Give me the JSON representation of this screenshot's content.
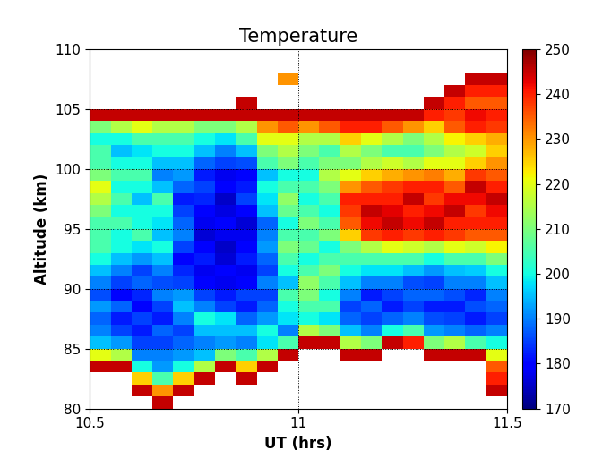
{
  "chart_data": {
    "type": "heatmap",
    "title": "Temperature",
    "x_label": "UT (hrs)",
    "y_label": "Altitude (km)",
    "xlim": [
      10.5,
      11.5
    ],
    "xticks": [
      10.5,
      11,
      11.5
    ],
    "ylim": [
      80,
      110
    ],
    "yticks": [
      80,
      85,
      90,
      95,
      100,
      105,
      110
    ],
    "grid": true,
    "color": "jet",
    "x_edges": [
      10.5,
      10.55,
      10.6,
      10.65,
      10.7,
      10.75,
      10.8,
      10.85,
      10.9,
      10.95,
      11.0,
      11.05,
      11.1,
      11.15,
      11.2,
      11.25,
      11.3,
      11.35,
      11.4,
      11.45,
      11.5
    ],
    "y_edges": [
      80,
      81,
      82,
      83,
      84,
      85,
      86,
      87,
      88,
      89,
      90,
      91,
      92,
      93,
      94,
      95,
      96,
      97,
      98,
      99,
      100,
      101,
      102,
      103,
      104,
      105,
      106,
      107,
      108,
      109,
      110
    ],
    "cells_by_column": [
      [
        null,
        null,
        null,
        245,
        220,
        195,
        190,
        188,
        192,
        186,
        190,
        195,
        200,
        205,
        205,
        205,
        210,
        215,
        220,
        210,
        205,
        205,
        200,
        210,
        245,
        null,
        null,
        null,
        null,
        null
      ],
      [
        null,
        null,
        null,
        245,
        215,
        192,
        185,
        182,
        188,
        180,
        185,
        190,
        195,
        200,
        200,
        205,
        200,
        205,
        200,
        205,
        200,
        195,
        200,
        215,
        245,
        null,
        null,
        null,
        null,
        null
      ],
      [
        null,
        245,
        225,
        200,
        190,
        185,
        182,
        185,
        180,
        183,
        188,
        185,
        192,
        198,
        205,
        200,
        200,
        195,
        200,
        205,
        200,
        198,
        205,
        220,
        245,
        null,
        null,
        null,
        null,
        null
      ],
      [
        245,
        230,
        205,
        192,
        190,
        185,
        188,
        182,
        185,
        190,
        186,
        190,
        195,
        200,
        195,
        198,
        200,
        205,
        195,
        190,
        195,
        200,
        205,
        215,
        245,
        null,
        null,
        null,
        null,
        null
      ],
      [
        null,
        245,
        225,
        200,
        192,
        188,
        185,
        190,
        195,
        192,
        185,
        183,
        180,
        185,
        190,
        188,
        185,
        182,
        188,
        192,
        195,
        200,
        205,
        215,
        245,
        null,
        null,
        null,
        null,
        null
      ],
      [
        null,
        null,
        245,
        215,
        195,
        190,
        195,
        200,
        190,
        185,
        180,
        178,
        182,
        180,
        176,
        178,
        180,
        183,
        185,
        182,
        188,
        195,
        200,
        210,
        245,
        null,
        null,
        null,
        null,
        null
      ],
      [
        null,
        null,
        null,
        245,
        210,
        192,
        195,
        198,
        185,
        182,
        178,
        180,
        176,
        175,
        178,
        180,
        177,
        175,
        180,
        178,
        185,
        190,
        198,
        210,
        245,
        null,
        null,
        null,
        null,
        null
      ],
      [
        null,
        null,
        245,
        225,
        205,
        190,
        195,
        188,
        182,
        185,
        180,
        178,
        182,
        180,
        178,
        176,
        180,
        185,
        182,
        180,
        186,
        195,
        205,
        215,
        245,
        245,
        null,
        null,
        null,
        null
      ],
      [
        null,
        null,
        null,
        245,
        215,
        198,
        200,
        192,
        188,
        185,
        190,
        185,
        188,
        192,
        190,
        188,
        195,
        198,
        200,
        195,
        205,
        210,
        220,
        230,
        245,
        null,
        null,
        null,
        null,
        null
      ],
      [
        null,
        null,
        null,
        null,
        245,
        205,
        190,
        198,
        200,
        205,
        195,
        200,
        205,
        210,
        205,
        200,
        208,
        212,
        205,
        200,
        210,
        215,
        220,
        235,
        245,
        null,
        null,
        230,
        null,
        null
      ],
      [
        null,
        null,
        null,
        null,
        null,
        245,
        215,
        200,
        205,
        210,
        212,
        205,
        200,
        208,
        205,
        210,
        205,
        200,
        205,
        200,
        205,
        210,
        215,
        230,
        245,
        null,
        null,
        null,
        null,
        null
      ],
      [
        null,
        null,
        null,
        null,
        null,
        245,
        210,
        198,
        205,
        200,
        205,
        210,
        205,
        200,
        210,
        205,
        200,
        205,
        210,
        215,
        210,
        205,
        215,
        235,
        245,
        null,
        null,
        null,
        null,
        null
      ],
      [
        null,
        null,
        null,
        null,
        245,
        215,
        195,
        188,
        185,
        190,
        195,
        200,
        205,
        210,
        225,
        235,
        238,
        240,
        230,
        220,
        210,
        215,
        225,
        240,
        245,
        null,
        null,
        null,
        null,
        null
      ],
      [
        null,
        null,
        null,
        null,
        245,
        210,
        190,
        185,
        188,
        182,
        190,
        198,
        205,
        215,
        238,
        242,
        245,
        240,
        235,
        225,
        215,
        210,
        220,
        240,
        245,
        null,
        null,
        null,
        null,
        null
      ],
      [
        null,
        null,
        null,
        null,
        null,
        245,
        200,
        188,
        182,
        185,
        190,
        198,
        205,
        220,
        240,
        245,
        243,
        240,
        238,
        228,
        218,
        205,
        215,
        235,
        245,
        null,
        null,
        null,
        null,
        null
      ],
      [
        null,
        null,
        null,
        null,
        null,
        240,
        205,
        190,
        185,
        188,
        186,
        195,
        205,
        218,
        238,
        242,
        240,
        245,
        240,
        230,
        215,
        205,
        210,
        230,
        245,
        null,
        null,
        null,
        null,
        null
      ],
      [
        null,
        null,
        null,
        null,
        245,
        210,
        192,
        186,
        182,
        188,
        185,
        192,
        200,
        215,
        240,
        245,
        242,
        238,
        240,
        232,
        220,
        210,
        215,
        225,
        240,
        245,
        null,
        null,
        null,
        null
      ],
      [
        null,
        null,
        null,
        null,
        245,
        215,
        190,
        185,
        182,
        186,
        190,
        195,
        205,
        220,
        238,
        240,
        245,
        242,
        235,
        228,
        220,
        215,
        222,
        235,
        238,
        240,
        245,
        null,
        null,
        null
      ],
      [
        null,
        null,
        null,
        null,
        245,
        205,
        188,
        182,
        186,
        183,
        190,
        196,
        205,
        218,
        235,
        240,
        238,
        242,
        245,
        238,
        225,
        218,
        225,
        240,
        242,
        235,
        240,
        245,
        null,
        null
      ],
      [
        null,
        245,
        240,
        235,
        220,
        200,
        190,
        185,
        188,
        190,
        195,
        200,
        210,
        222,
        235,
        240,
        242,
        245,
        240,
        235,
        230,
        225,
        228,
        238,
        240,
        235,
        240,
        245,
        null,
        null
      ]
    ],
    "colorbar": {
      "lim": [
        170,
        250
      ],
      "ticks": [
        170,
        180,
        190,
        200,
        210,
        220,
        230,
        240,
        250
      ]
    }
  }
}
